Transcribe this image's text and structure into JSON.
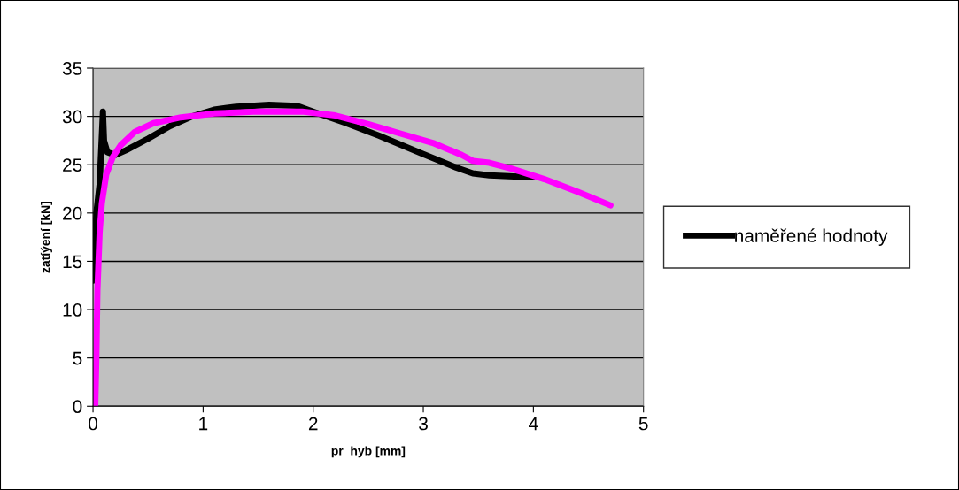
{
  "chart_data": {
    "type": "line",
    "xlabel": "pr  hyb [mm]",
    "ylabel": "zatíýení [kN]",
    "xlim": [
      0,
      5
    ],
    "xticks": [
      0,
      1,
      2,
      3,
      4,
      5
    ],
    "ylim": [
      0,
      35
    ],
    "yticks": [
      0,
      5,
      10,
      15,
      20,
      25,
      30,
      35
    ],
    "grid": "y",
    "legend": "right",
    "line_style": "solid",
    "series": [
      {
        "name": "naměřené hodnoty",
        "color": "#000000",
        "x": [
          0.0,
          0.03,
          0.06,
          0.09,
          0.1,
          0.13,
          0.2,
          0.3,
          0.5,
          0.7,
          0.9,
          1.1,
          1.3,
          1.6,
          1.85,
          2.0,
          2.3,
          2.6,
          3.0,
          3.3,
          3.45,
          3.6,
          4.0
        ],
        "values": [
          13,
          20,
          23,
          30.5,
          27.5,
          26.3,
          26,
          26.5,
          27.7,
          29,
          30,
          30.7,
          31,
          31.2,
          31.1,
          30.5,
          29.3,
          28,
          26.1,
          24.7,
          24.1,
          23.9,
          23.7
        ]
      },
      {
        "color": "#ff00ff",
        "x": [
          0.02,
          0.03,
          0.04,
          0.06,
          0.08,
          0.12,
          0.18,
          0.25,
          0.38,
          0.55,
          0.8,
          1.1,
          1.5,
          1.9,
          2.2,
          2.5,
          2.8,
          3.1,
          3.35,
          3.45,
          3.6,
          3.8,
          4.1,
          4.4,
          4.7
        ],
        "values": [
          0,
          5,
          12,
          18,
          21,
          24,
          25.8,
          27,
          28.4,
          29.3,
          29.9,
          30.3,
          30.5,
          30.5,
          30.1,
          29.2,
          28.2,
          27.2,
          26,
          25.4,
          25.2,
          24.6,
          23.5,
          22.2,
          20.8
        ]
      }
    ]
  }
}
